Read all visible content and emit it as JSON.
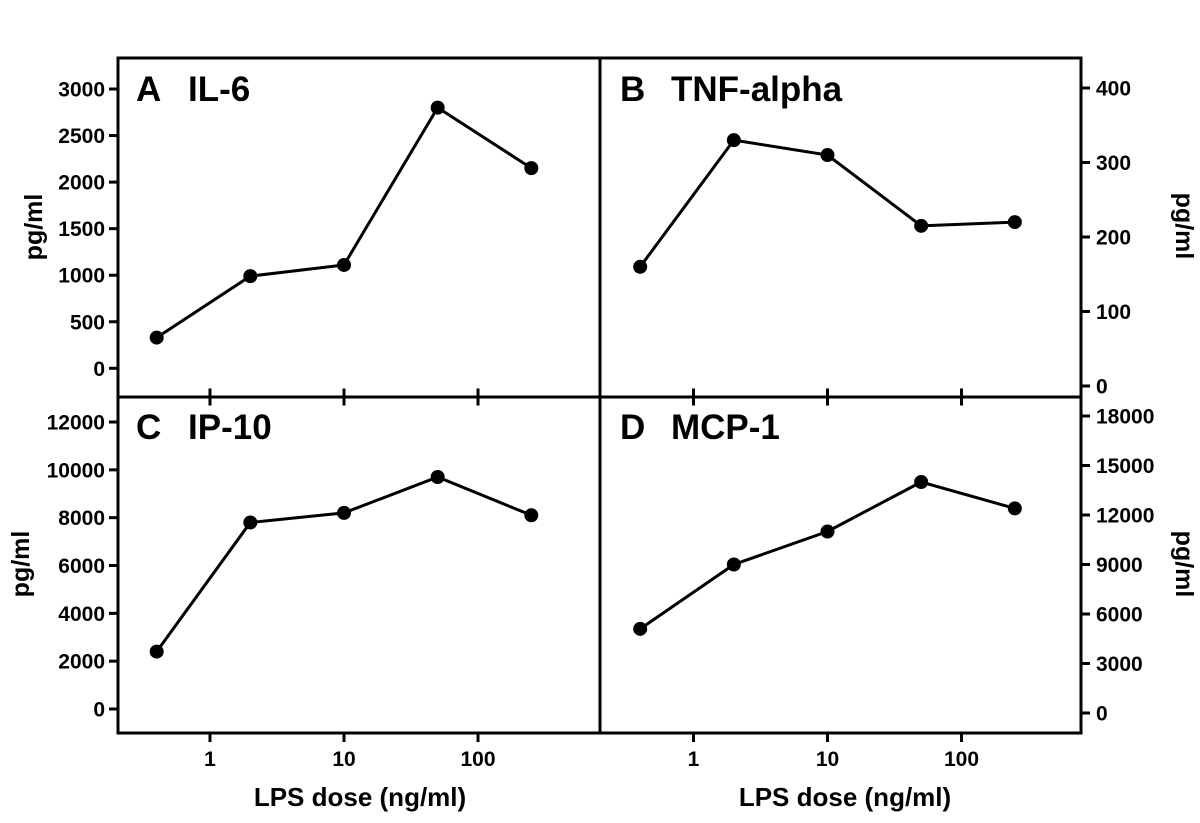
{
  "figure": {
    "background": "#ffffff",
    "ink_color": "#000000",
    "xlabel": "LPS dose (ng/ml)",
    "ylabel": "pg/ml",
    "x_tick_labels": [
      "1",
      "10",
      "100"
    ],
    "x_tick_values": [
      1,
      10,
      100
    ]
  },
  "chart_data": [
    {
      "type": "line",
      "panel_label": "A",
      "title": "IL-6",
      "xscale": "log",
      "xlabel": "LPS dose (ng/ml)",
      "ylabel": "pg/ml",
      "x": [
        0.4,
        2,
        10,
        50,
        250
      ],
      "values": [
        330,
        990,
        1110,
        2800,
        2150
      ],
      "ylim": [
        0,
        3000
      ],
      "yticks": [
        0,
        500,
        1000,
        1500,
        2000,
        2500,
        3000
      ],
      "yaxis_side": "left",
      "marker": "filled-circle",
      "color": "#000000",
      "legend": "none",
      "grid": "off"
    },
    {
      "type": "line",
      "panel_label": "B",
      "title": "TNF-alpha",
      "xscale": "log",
      "xlabel": "LPS dose (ng/ml)",
      "ylabel": "pg/ml",
      "x": [
        0.4,
        2,
        10,
        50,
        250
      ],
      "values": [
        160,
        330,
        310,
        215,
        220
      ],
      "ylim": [
        0,
        400
      ],
      "yticks": [
        0,
        100,
        200,
        300,
        400
      ],
      "yaxis_side": "right",
      "marker": "filled-circle",
      "color": "#000000",
      "legend": "none",
      "grid": "off"
    },
    {
      "type": "line",
      "panel_label": "C",
      "title": "IP-10",
      "xscale": "log",
      "xlabel": "LPS dose (ng/ml)",
      "ylabel": "pg/ml",
      "x": [
        0.4,
        2,
        10,
        50,
        250
      ],
      "values": [
        2400,
        7800,
        8200,
        9700,
        8100
      ],
      "ylim": [
        0,
        12000
      ],
      "yticks": [
        0,
        2000,
        4000,
        6000,
        8000,
        10000,
        12000
      ],
      "yaxis_side": "left",
      "marker": "filled-circle",
      "color": "#000000",
      "legend": "none",
      "grid": "off"
    },
    {
      "type": "line",
      "panel_label": "D",
      "title": "MCP-1",
      "xscale": "log",
      "xlabel": "LPS dose (ng/ml)",
      "ylabel": "pg/ml",
      "x": [
        0.4,
        2,
        10,
        50,
        250
      ],
      "values": [
        5100,
        9000,
        11000,
        14000,
        12400
      ],
      "ylim": [
        0,
        18000
      ],
      "yticks": [
        0,
        3000,
        6000,
        9000,
        12000,
        15000,
        18000
      ],
      "yaxis_side": "right",
      "marker": "filled-circle",
      "color": "#000000",
      "legend": "none",
      "grid": "off"
    }
  ]
}
